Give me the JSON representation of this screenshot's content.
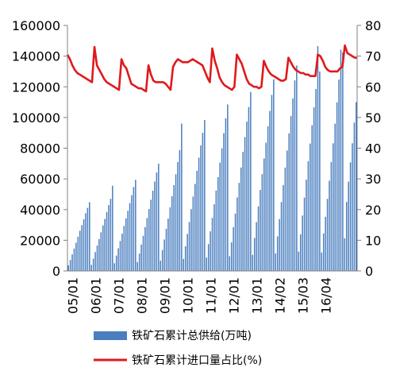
{
  "chart_data": {
    "type": "bar+line",
    "title": "",
    "x_tick_labels": [
      "05/01",
      "06/01",
      "07/01",
      "08/01",
      "09/01",
      "10/01",
      "11/01",
      "12/01",
      "13/01",
      "14/02",
      "15/03",
      "16/04"
    ],
    "y_left": {
      "min": 0,
      "max": 160000,
      "step": 20000,
      "ticks": [
        "0",
        "20000",
        "40000",
        "60000",
        "80000",
        "100000",
        "120000",
        "140000",
        "160000"
      ]
    },
    "y_right": {
      "min": 0,
      "max": 80,
      "step": 10,
      "ticks": [
        "0",
        "10",
        "20",
        "30",
        "40",
        "50",
        "60",
        "70",
        "80"
      ]
    },
    "legend": {
      "position": "bottom",
      "bar_label": "铁矿石累计总供给(万吨)",
      "line_label": "铁矿石累计进口量占比(%)"
    },
    "colors": {
      "bar": "#4a7ebf",
      "bar_edge": "#3a6aa8",
      "line": "#e0191b",
      "axis": "#808080"
    },
    "series": [
      {
        "name": "铁矿石累计总供给(万吨)",
        "axis": "left",
        "values": [
          3600,
          7200,
          10800,
          14600,
          18400,
          22300,
          26200,
          29800,
          33600,
          37600,
          41100,
          44800,
          4000,
          8000,
          12300,
          16600,
          20800,
          25200,
          29700,
          33900,
          38300,
          42900,
          47000,
          55500,
          5000,
          10000,
          14800,
          19500,
          24300,
          29300,
          34200,
          39200,
          44200,
          49400,
          54700,
          59400,
          5800,
          11300,
          17200,
          22900,
          28600,
          34500,
          40400,
          46400,
          52300,
          58300,
          64200,
          69900,
          6700,
          13700,
          20500,
          27500,
          34100,
          41500,
          48700,
          55900,
          63000,
          71000,
          78700,
          96000,
          7900,
          16100,
          24100,
          31900,
          40300,
          48500,
          56700,
          65200,
          73800,
          81800,
          90000,
          98400,
          8700,
          17500,
          25800,
          34600,
          43400,
          52400,
          61100,
          70600,
          79900,
          89800,
          99500,
          108500,
          9600,
          18600,
          28500,
          37400,
          47900,
          57400,
          67400,
          77600,
          87200,
          97300,
          106800,
          116600,
          10500,
          21500,
          31800,
          42100,
          52800,
          63100,
          73300,
          83600,
          94300,
          104300,
          114700,
          124900,
          11400,
          22500,
          33800,
          44900,
          56000,
          67400,
          78500,
          89600,
          100900,
          112400,
          124200,
          133900,
          12600,
          23900,
          36100,
          47800,
          59500,
          71500,
          83000,
          95000,
          106600,
          118600,
          146500,
          130000,
          12000,
          24500,
          35300,
          47000,
          58800,
          71000,
          83200,
          96000,
          109900,
          124700,
          144200,
          142300,
          21300,
          45000,
          58200,
          70800,
          83200,
          96700,
          110000
        ]
      },
      {
        "name": "铁矿石累计进口量占比(%)",
        "axis": "right",
        "values": [
          70.5,
          69.0,
          67.0,
          65.5,
          64.5,
          64.0,
          63.5,
          63.0,
          62.5,
          62.0,
          61.5,
          73.0,
          67.0,
          65.5,
          64.0,
          62.5,
          61.5,
          61.0,
          60.5,
          60.0,
          59.5,
          59.0,
          69.0,
          67.0,
          66.0,
          63.5,
          61.0,
          60.5,
          60.0,
          59.5,
          59.5,
          59.0,
          58.5,
          67.0,
          64.0,
          62.0,
          61.5,
          61.5,
          61.5,
          61.5,
          61.0,
          60.0,
          59.0,
          66.5,
          68.0,
          69.0,
          68.5,
          68.0,
          68.0,
          68.0,
          68.5,
          69.0,
          68.5,
          68.0,
          67.5,
          67.0,
          65.0,
          63.0,
          61.5,
          72.5,
          68.5,
          66.0,
          63.0,
          61.5,
          60.5,
          60.0,
          59.5,
          59.0,
          60.0,
          70.5,
          69.0,
          67.5,
          65.0,
          62.5,
          61.0,
          60.5,
          60.0,
          60.0,
          59.5,
          60.0,
          68.5,
          66.5,
          65.0,
          64.0,
          63.5,
          63.0,
          62.5,
          62.0,
          62.0,
          62.5,
          69.5,
          68.0,
          66.5,
          65.5,
          65.0,
          64.5,
          64.5,
          64.0,
          64.0,
          63.5,
          63.5,
          63.5,
          70.5,
          70.0,
          68.5,
          66.5,
          65.5,
          65.0,
          65.0,
          65.0,
          65.0,
          66.0,
          66.5,
          73.5,
          71.0,
          70.5,
          70.0,
          69.5,
          69.5
        ]
      }
    ]
  }
}
